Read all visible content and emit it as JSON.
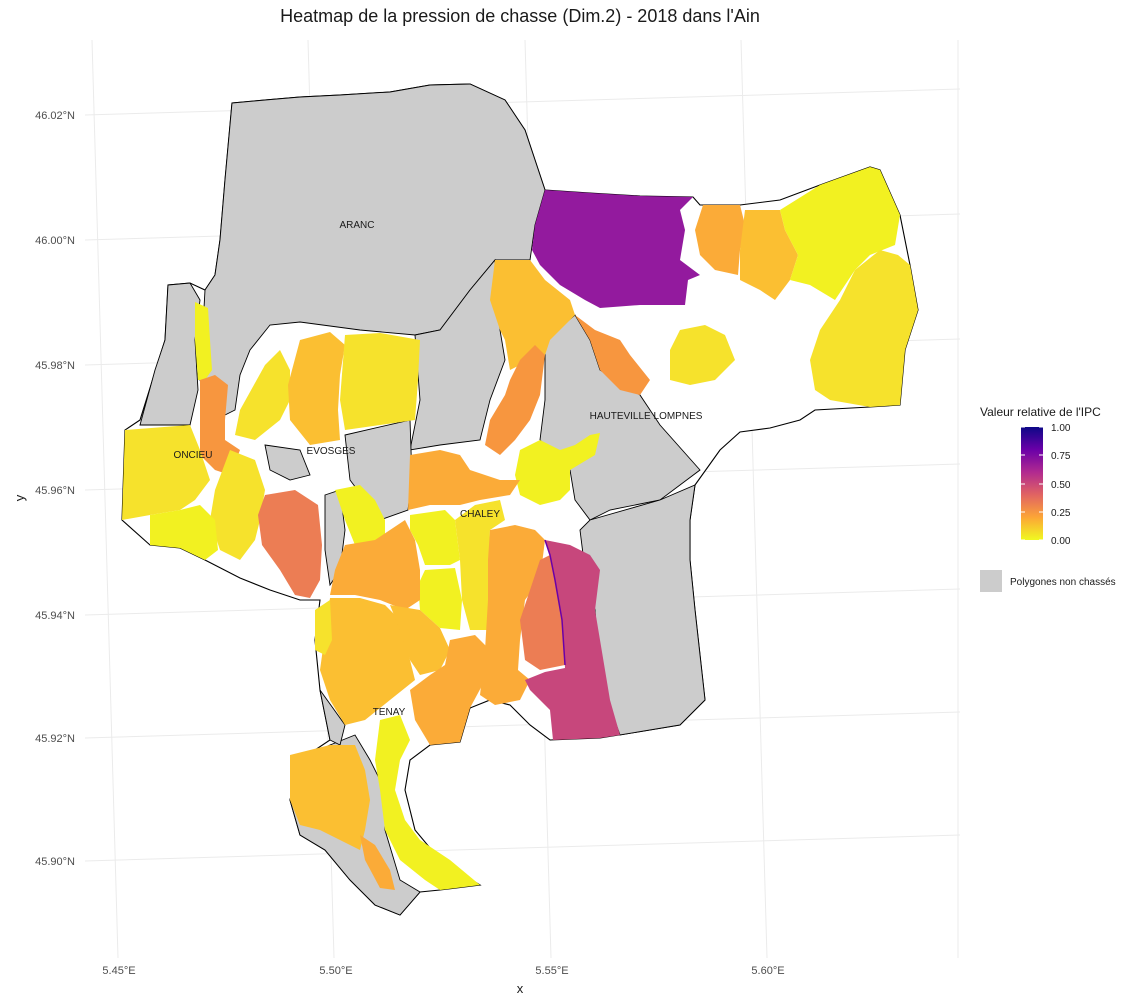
{
  "title": "Heatmap de la pression de chasse (Dim.2) - 2018 dans l'Ain",
  "axes": {
    "x_label": "x",
    "y_label": "y",
    "x_ticks": [
      "5.45°E",
      "5.50°E",
      "5.55°E",
      "5.60°E"
    ],
    "y_ticks": [
      "46.02°N",
      "46.00°N",
      "45.98°N",
      "45.96°N",
      "45.94°N",
      "45.92°N",
      "45.90°N"
    ]
  },
  "communes": [
    "ARANC",
    "ONCIEU",
    "EVOSGES",
    "HAUTEVILLE LOMPNES",
    "CHALEY",
    "TENAY"
  ],
  "legend": {
    "title": "Valeur relative de l'IPC",
    "ticks": [
      "1.00",
      "0.75",
      "0.50",
      "0.25",
      "0.00"
    ],
    "colormap": "plasma",
    "gradient_colors": [
      "#0d0887",
      "#6a00a8",
      "#b12a90",
      "#e16462",
      "#fca636",
      "#f0f921"
    ],
    "non_hunted_label": "Polygones non chassés",
    "non_hunted_color": "#cccccc"
  },
  "chart_data": {
    "type": "heatmap",
    "title": "Heatmap de la pression de chasse (Dim.2) - 2018 dans l'Ain",
    "xlabel": "x",
    "ylabel": "y",
    "xlim": [
      5.445,
      5.645
    ],
    "ylim": [
      45.888,
      46.032
    ],
    "value_range": [
      0,
      1
    ],
    "colors_by_level": {
      "yellow": "#f2f121",
      "yellow_gold": "#f6e22c",
      "orange_light": "#fbbf32",
      "orange": "#fbab38",
      "orange_dark": "#f7963f",
      "salmon": "#ec7d54",
      "magenta": "#c7477c",
      "purple": "#931a9e",
      "grey": "#cccccc"
    }
  }
}
